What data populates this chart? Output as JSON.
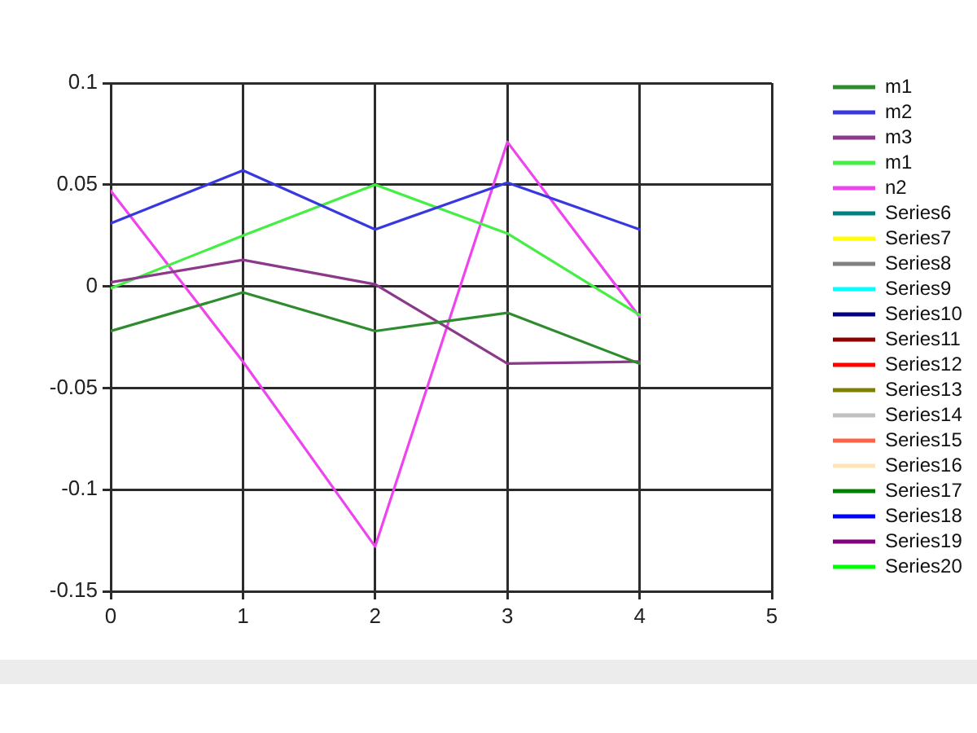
{
  "chart_data": {
    "type": "line",
    "x": [
      0,
      1,
      2,
      3,
      4
    ],
    "xlim": [
      0,
      5
    ],
    "xticks": [
      0,
      1,
      2,
      3,
      4,
      5
    ],
    "ylim": [
      -0.15,
      0.1
    ],
    "yticks": [
      -0.15,
      -0.1,
      -0.05,
      0,
      0.05,
      0.1
    ],
    "grid": true,
    "legend": "right",
    "marker": "none",
    "line_style": "solid",
    "series": [
      {
        "name": "m1",
        "color": "#2e8b2e",
        "values": [
          -0.022,
          -0.003,
          -0.022,
          -0.013,
          -0.038
        ]
      },
      {
        "name": "m2",
        "color": "#3838e0",
        "values": [
          0.031,
          0.057,
          0.028,
          0.051,
          0.028
        ]
      },
      {
        "name": "m3",
        "color": "#8b3a8b",
        "values": [
          0.002,
          0.013,
          0.001,
          -0.038,
          -0.037
        ]
      },
      {
        "name": "m1",
        "color": "#44ee44",
        "values": [
          -0.001,
          0.025,
          0.05,
          0.026,
          -0.014
        ]
      },
      {
        "name": "n2",
        "color": "#ee44ee",
        "values": [
          0.047,
          -0.037,
          -0.128,
          0.071,
          -0.015
        ]
      },
      {
        "name": "Series6",
        "color": "#008080",
        "values": [
          null,
          null,
          null,
          null,
          null
        ]
      },
      {
        "name": "Series7",
        "color": "#ffff00",
        "values": [
          null,
          null,
          null,
          null,
          null
        ]
      },
      {
        "name": "Series8",
        "color": "#808080",
        "values": [
          null,
          null,
          null,
          null,
          null
        ]
      },
      {
        "name": "Series9",
        "color": "#00ffff",
        "values": [
          null,
          null,
          null,
          null,
          null
        ]
      },
      {
        "name": "Series10",
        "color": "#000080",
        "values": [
          null,
          null,
          null,
          null,
          null
        ]
      },
      {
        "name": "Series11",
        "color": "#8b0000",
        "values": [
          null,
          null,
          null,
          null,
          null
        ]
      },
      {
        "name": "Series12",
        "color": "#ff0000",
        "values": [
          null,
          null,
          null,
          null,
          null
        ]
      },
      {
        "name": "Series13",
        "color": "#808000",
        "values": [
          null,
          null,
          null,
          null,
          null
        ]
      },
      {
        "name": "Series14",
        "color": "#c0c0c0",
        "values": [
          null,
          null,
          null,
          null,
          null
        ]
      },
      {
        "name": "Series15",
        "color": "#ff6347",
        "values": [
          null,
          null,
          null,
          null,
          null
        ]
      },
      {
        "name": "Series16",
        "color": "#ffe4b5",
        "values": [
          null,
          null,
          null,
          null,
          null
        ]
      },
      {
        "name": "Series17",
        "color": "#008000",
        "values": [
          null,
          null,
          null,
          null,
          null
        ]
      },
      {
        "name": "Series18",
        "color": "#0000ff",
        "values": [
          null,
          null,
          null,
          null,
          null
        ]
      },
      {
        "name": "Series19",
        "color": "#800080",
        "values": [
          null,
          null,
          null,
          null,
          null
        ]
      },
      {
        "name": "Series20",
        "color": "#00ff00",
        "values": [
          null,
          null,
          null,
          null,
          null
        ]
      }
    ]
  }
}
